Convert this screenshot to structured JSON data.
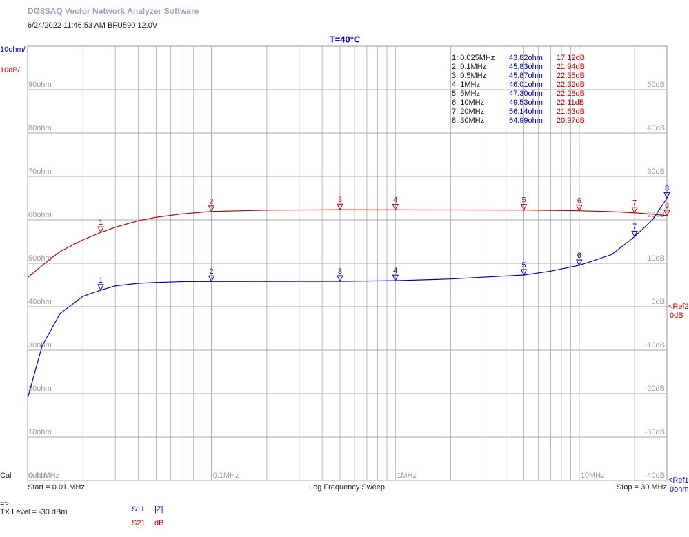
{
  "app_title": "DG8SAQ Vector Network Analyzer Software",
  "info_line": "6/24/2022   11:46:53 AM   BFU590   12.0V",
  "chart_data": {
    "type": "line",
    "title": "T=40°C",
    "x_scale": "log",
    "grid": true,
    "x": [
      0.01,
      0.012,
      0.015,
      0.02,
      0.025,
      0.03,
      0.04,
      0.05,
      0.07,
      0.1,
      0.2,
      0.5,
      1,
      2,
      5,
      7,
      10,
      15,
      20,
      25,
      30
    ],
    "xlim": [
      0.01,
      30
    ],
    "xticks": [
      {
        "value": 0.01,
        "label": "0.01MHz"
      },
      {
        "value": 0.1,
        "label": "0.1MHz"
      },
      {
        "value": 1,
        "label": "1MHz"
      },
      {
        "value": 10,
        "label": "10MHz"
      }
    ],
    "xminor": [
      0.02,
      0.03,
      0.04,
      0.05,
      0.06,
      0.07,
      0.08,
      0.09,
      0.2,
      0.3,
      0.4,
      0.5,
      0.6,
      0.7,
      0.8,
      0.9,
      2,
      3,
      4,
      5,
      6,
      7,
      8,
      9,
      20
    ],
    "ylim": [
      0,
      100
    ],
    "yticks": [
      {
        "value": 0,
        "label": "0ohm"
      },
      {
        "value": 10,
        "label": "10ohm"
      },
      {
        "value": 20,
        "label": "20ohm"
      },
      {
        "value": 30,
        "label": "30ohm"
      },
      {
        "value": 40,
        "label": "40ohm"
      },
      {
        "value": 50,
        "label": "50ohm"
      },
      {
        "value": 60,
        "label": "60ohm"
      },
      {
        "value": 70,
        "label": "70ohm"
      },
      {
        "value": 80,
        "label": "80ohm"
      },
      {
        "value": 90,
        "label": "90ohm"
      }
    ],
    "y2lim": [
      -40,
      60
    ],
    "y2ticks": [
      {
        "value": -40,
        "label": "-40dB"
      },
      {
        "value": -30,
        "label": "-30dB"
      },
      {
        "value": -20,
        "label": "-20dB"
      },
      {
        "value": -10,
        "label": "-10dB"
      },
      {
        "value": 0,
        "label": "0dB"
      },
      {
        "value": 10,
        "label": "10dB"
      },
      {
        "value": 20,
        "label": "20dB"
      },
      {
        "value": 30,
        "label": "30dB"
      },
      {
        "value": 40,
        "label": "40dB"
      },
      {
        "value": 50,
        "label": "50dB"
      }
    ],
    "series": [
      {
        "name": "S11",
        "format": "|Z|",
        "color": "#0000c8",
        "scale_label": "10ohm/",
        "ref_label": "<Ref1",
        "ref_value_label": "0ohm",
        "values": [
          18.9,
          31,
          38.4,
          42.4,
          43.82,
          44.8,
          45.4,
          45.6,
          45.8,
          45.83,
          45.85,
          45.87,
          46.01,
          46.4,
          47.3,
          48.2,
          49.53,
          52.0,
          56.14,
          60.0,
          64.99
        ]
      },
      {
        "name": "S21",
        "format": "dB",
        "color": "#c80000",
        "axis": "y2",
        "scale_label": "10dB/",
        "ref_label": "<Ref2",
        "ref_value_label": "0dB",
        "values": [
          6.7,
          9.5,
          12.7,
          15.4,
          17.12,
          18.3,
          19.8,
          20.6,
          21.4,
          21.94,
          22.25,
          22.35,
          22.32,
          22.31,
          22.28,
          22.2,
          22.11,
          21.9,
          21.63,
          21.3,
          20.97
        ]
      }
    ],
    "markers": [
      {
        "id": "1",
        "x": 0.025,
        "label": "1: 0.025MHz",
        "z": 43.82,
        "z_label": "43.82ohm",
        "s21": 17.12,
        "s21_label": "17.12dB"
      },
      {
        "id": "2",
        "x": 0.1,
        "label": "2: 0.1MHz",
        "z": 45.83,
        "z_label": "45.83ohm",
        "s21": 21.94,
        "s21_label": "21.94dB"
      },
      {
        "id": "3",
        "x": 0.5,
        "label": "3: 0.5MHz",
        "z": 45.87,
        "z_label": "45.87ohm",
        "s21": 22.35,
        "s21_label": "22.35dB"
      },
      {
        "id": "4",
        "x": 1,
        "label": "4: 1MHz",
        "z": 46.01,
        "z_label": "46.01ohm",
        "s21": 22.32,
        "s21_label": "22.32dB"
      },
      {
        "id": "5",
        "x": 5,
        "label": "5: 5MHz",
        "z": 47.3,
        "z_label": "47.30ohm",
        "s21": 22.28,
        "s21_label": "22.28dB"
      },
      {
        "id": "6",
        "x": 10,
        "label": "6: 10MHz",
        "z": 49.53,
        "z_label": "49.53ohm",
        "s21": 22.11,
        "s21_label": "22.11dB"
      },
      {
        "id": "7",
        "x": 20,
        "label": "7: 20MHz",
        "z": 56.14,
        "z_label": "56.14ohm",
        "s21": 21.63,
        "s21_label": "21.63dB"
      },
      {
        "id": "8",
        "x": 30,
        "label": "8: 30MHz",
        "z": 64.99,
        "z_label": "64.99ohm",
        "s21": 20.97,
        "s21_label": "20.97dB"
      }
    ]
  },
  "footer": {
    "cal": "Cal",
    "start": "Start = 0.01 MHz",
    "sweep": "Log Frequency Sweep",
    "stop": "Stop = 30 MHz",
    "arrow": "=>",
    "tx_level": "TX Level = -30 dBm"
  }
}
